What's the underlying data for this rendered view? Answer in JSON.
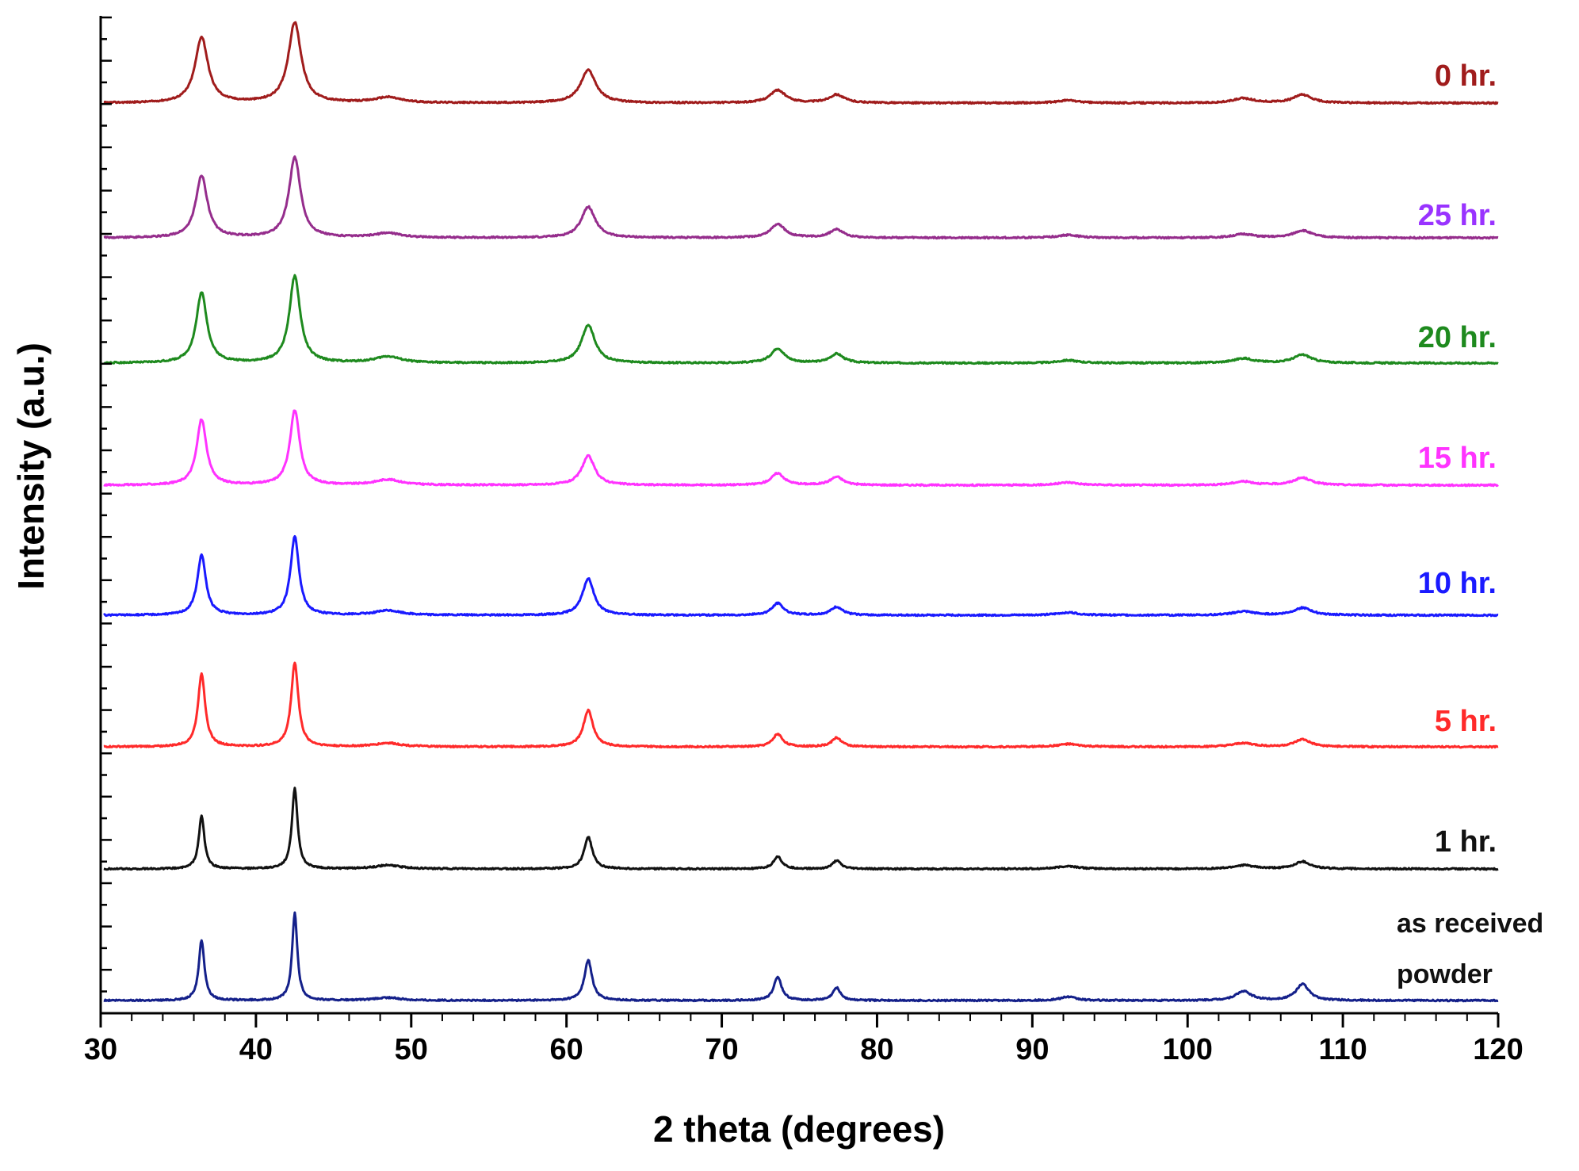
{
  "chart_data": {
    "type": "line",
    "title": "",
    "xlabel": "2 theta (degrees)",
    "ylabel": "Intensity (a.u.)",
    "xlim": [
      30,
      120
    ],
    "xticks": [
      "30",
      "40",
      "50",
      "60",
      "70",
      "80",
      "90",
      "100",
      "110",
      "120"
    ],
    "y_tick_labels_shown": false,
    "stacked_offset": true,
    "grid": false,
    "legend": "inline labels at right end of each trace",
    "peaks_x": [
      36.5,
      42.5,
      48.5,
      61.4,
      73.6,
      77.4,
      92.3,
      103.6,
      107.4
    ],
    "series": [
      {
        "name": "0 hr.",
        "color": "#a01c1c",
        "peak_heights": [
          72,
          88,
          6,
          36,
          14,
          9,
          3,
          5,
          9
        ],
        "peak_widths": [
          0.5,
          0.5,
          1.0,
          0.6,
          0.6,
          0.6,
          0.8,
          0.8,
          0.7
        ]
      },
      {
        "name": "25 hr.",
        "color": "#952d8c",
        "peak_heights": [
          68,
          88,
          5,
          34,
          15,
          9,
          3,
          4,
          8
        ],
        "peak_widths": [
          0.45,
          0.45,
          1.0,
          0.55,
          0.55,
          0.55,
          0.8,
          0.8,
          0.7
        ]
      },
      {
        "name": "20 hr.",
        "color": "#1e8a1e",
        "peak_heights": [
          77,
          95,
          7,
          42,
          16,
          10,
          3,
          5,
          9
        ],
        "peak_widths": [
          0.42,
          0.42,
          1.0,
          0.52,
          0.52,
          0.52,
          0.8,
          0.8,
          0.7
        ]
      },
      {
        "name": "15 hr.",
        "color": "#ff33ff",
        "peak_heights": [
          72,
          82,
          6,
          32,
          13,
          9,
          3,
          4,
          8
        ],
        "peak_widths": [
          0.38,
          0.38,
          1.0,
          0.5,
          0.5,
          0.5,
          0.8,
          0.8,
          0.7
        ]
      },
      {
        "name": "10 hr.",
        "color": "#1a1aff",
        "peak_heights": [
          66,
          86,
          5,
          40,
          13,
          9,
          3,
          4,
          8
        ],
        "peak_widths": [
          0.33,
          0.33,
          1.0,
          0.45,
          0.45,
          0.45,
          0.8,
          0.8,
          0.7
        ]
      },
      {
        "name": "5 hr.",
        "color": "#ff2a2a",
        "peak_heights": [
          80,
          92,
          4,
          40,
          14,
          10,
          3,
          4,
          8
        ],
        "peak_widths": [
          0.28,
          0.28,
          1.0,
          0.38,
          0.38,
          0.38,
          0.8,
          0.8,
          0.6
        ]
      },
      {
        "name": "1 hr.",
        "color": "#111111",
        "peak_heights": [
          58,
          88,
          4,
          35,
          14,
          9,
          3,
          4,
          8
        ],
        "peak_widths": [
          0.22,
          0.22,
          1.0,
          0.32,
          0.32,
          0.32,
          0.8,
          0.8,
          0.6
        ]
      },
      {
        "name": "as received powder",
        "color": "#14208a",
        "peak_heights": [
          66,
          96,
          3,
          44,
          26,
          14,
          4,
          10,
          18
        ],
        "peak_widths": [
          0.22,
          0.2,
          1.0,
          0.3,
          0.3,
          0.3,
          0.6,
          0.6,
          0.5
        ]
      }
    ]
  },
  "labels": {
    "s0": "0 hr.",
    "s1": "25 hr.",
    "s2": "20 hr.",
    "s3": "15 hr.",
    "s4": "10 hr.",
    "s5": "5 hr.",
    "s6": "1 hr.",
    "s7_line1": "as received",
    "s7_line2": "powder"
  }
}
